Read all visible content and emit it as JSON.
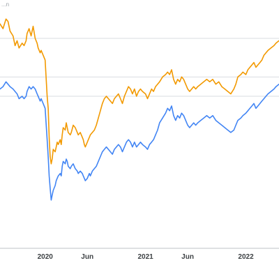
{
  "corner_text": "...n",
  "chart_data": {
    "type": "line",
    "title": "",
    "xlabel": "",
    "ylabel": "",
    "grid": true,
    "legend": "none",
    "x_ticks": [
      {
        "label": "2020",
        "x": 2020.0
      },
      {
        "label": "Jun",
        "x": 2020.42
      },
      {
        "label": "2021",
        "x": 2021.0
      },
      {
        "label": "Jun",
        "x": 2021.42
      },
      {
        "label": "2022",
        "x": 2022.0
      }
    ],
    "x_range": [
      2019.55,
      2022.33
    ],
    "y_range": [
      0,
      100
    ],
    "gridlines_y": [
      87,
      71,
      63
    ],
    "series": [
      {
        "color": "#f29900",
        "points": [
          [
            2019.55,
            93
          ],
          [
            2019.58,
            91
          ],
          [
            2019.61,
            95
          ],
          [
            2019.63,
            94
          ],
          [
            2019.65,
            90
          ],
          [
            2019.68,
            88
          ],
          [
            2019.7,
            84
          ],
          [
            2019.72,
            86
          ],
          [
            2019.74,
            83
          ],
          [
            2019.77,
            85
          ],
          [
            2019.79,
            84
          ],
          [
            2019.81,
            86
          ],
          [
            2019.82,
            89
          ],
          [
            2019.84,
            91
          ],
          [
            2019.86,
            88
          ],
          [
            2019.88,
            92
          ],
          [
            2019.9,
            87
          ],
          [
            2019.92,
            85
          ],
          [
            2019.93,
            83
          ],
          [
            2019.95,
            81
          ],
          [
            2019.96,
            82
          ],
          [
            2019.98,
            80
          ],
          [
            2020.0,
            78
          ],
          [
            2020.02,
            63
          ],
          [
            2020.03,
            58
          ],
          [
            2020.04,
            46
          ],
          [
            2020.05,
            38
          ],
          [
            2020.06,
            35
          ],
          [
            2020.07,
            37
          ],
          [
            2020.08,
            41
          ],
          [
            2020.1,
            40
          ],
          [
            2020.11,
            42
          ],
          [
            2020.12,
            44
          ],
          [
            2020.13,
            43
          ],
          [
            2020.15,
            45
          ],
          [
            2020.16,
            43
          ],
          [
            2020.17,
            47
          ],
          [
            2020.18,
            50
          ],
          [
            2020.2,
            49
          ],
          [
            2020.21,
            52
          ],
          [
            2020.22,
            50
          ],
          [
            2020.23,
            48
          ],
          [
            2020.25,
            47
          ],
          [
            2020.26,
            48
          ],
          [
            2020.28,
            51
          ],
          [
            2020.3,
            50
          ],
          [
            2020.32,
            48
          ],
          [
            2020.33,
            47
          ],
          [
            2020.35,
            48
          ],
          [
            2020.37,
            46
          ],
          [
            2020.38,
            45
          ],
          [
            2020.39,
            43
          ],
          [
            2020.4,
            42
          ],
          [
            2020.42,
            44
          ],
          [
            2020.43,
            45
          ],
          [
            2020.44,
            46
          ],
          [
            2020.45,
            47
          ],
          [
            2020.47,
            48
          ],
          [
            2020.49,
            49
          ],
          [
            2020.51,
            51
          ],
          [
            2020.53,
            54
          ],
          [
            2020.55,
            57
          ],
          [
            2020.57,
            60
          ],
          [
            2020.59,
            62
          ],
          [
            2020.61,
            63
          ],
          [
            2020.63,
            62
          ],
          [
            2020.65,
            61
          ],
          [
            2020.67,
            60
          ],
          [
            2020.69,
            62
          ],
          [
            2020.71,
            63
          ],
          [
            2020.73,
            64
          ],
          [
            2020.75,
            62
          ],
          [
            2020.77,
            60
          ],
          [
            2020.79,
            63
          ],
          [
            2020.81,
            65
          ],
          [
            2020.83,
            67
          ],
          [
            2020.85,
            66
          ],
          [
            2020.87,
            64
          ],
          [
            2020.89,
            66
          ],
          [
            2020.91,
            63
          ],
          [
            2020.93,
            65
          ],
          [
            2020.95,
            66
          ],
          [
            2020.97,
            65
          ],
          [
            2021.0,
            64
          ],
          [
            2021.02,
            62
          ],
          [
            2021.04,
            64
          ],
          [
            2021.06,
            66
          ],
          [
            2021.08,
            65
          ],
          [
            2021.1,
            67
          ],
          [
            2021.12,
            68
          ],
          [
            2021.14,
            69
          ],
          [
            2021.17,
            71
          ],
          [
            2021.2,
            72
          ],
          [
            2021.22,
            73
          ],
          [
            2021.24,
            72
          ],
          [
            2021.26,
            74
          ],
          [
            2021.28,
            70
          ],
          [
            2021.3,
            68
          ],
          [
            2021.32,
            70
          ],
          [
            2021.34,
            69
          ],
          [
            2021.36,
            71
          ],
          [
            2021.38,
            70
          ],
          [
            2021.4,
            68
          ],
          [
            2021.42,
            66
          ],
          [
            2021.44,
            65
          ],
          [
            2021.46,
            66
          ],
          [
            2021.48,
            67
          ],
          [
            2021.5,
            66
          ],
          [
            2021.52,
            67
          ],
          [
            2021.55,
            68
          ],
          [
            2021.58,
            69
          ],
          [
            2021.61,
            70
          ],
          [
            2021.64,
            69
          ],
          [
            2021.67,
            70
          ],
          [
            2021.7,
            68
          ],
          [
            2021.73,
            69
          ],
          [
            2021.76,
            67
          ],
          [
            2021.79,
            66
          ],
          [
            2021.82,
            65
          ],
          [
            2021.85,
            64
          ],
          [
            2021.88,
            66
          ],
          [
            2021.9,
            68
          ],
          [
            2021.92,
            71
          ],
          [
            2021.95,
            72
          ],
          [
            2021.97,
            73
          ],
          [
            2022.0,
            72
          ],
          [
            2022.02,
            74
          ],
          [
            2022.04,
            75
          ],
          [
            2022.06,
            76
          ],
          [
            2022.08,
            77
          ],
          [
            2022.1,
            75
          ],
          [
            2022.12,
            76
          ],
          [
            2022.14,
            77
          ],
          [
            2022.16,
            78
          ],
          [
            2022.18,
            80
          ],
          [
            2022.2,
            81
          ],
          [
            2022.22,
            82
          ],
          [
            2022.25,
            83
          ],
          [
            2022.28,
            84
          ],
          [
            2022.3,
            85
          ],
          [
            2022.33,
            86
          ]
        ]
      },
      {
        "color": "#4285f4",
        "points": [
          [
            2019.55,
            66
          ],
          [
            2019.58,
            67
          ],
          [
            2019.61,
            69
          ],
          [
            2019.63,
            68
          ],
          [
            2019.65,
            67
          ],
          [
            2019.68,
            66
          ],
          [
            2019.7,
            65
          ],
          [
            2019.72,
            64
          ],
          [
            2019.74,
            62
          ],
          [
            2019.77,
            63
          ],
          [
            2019.79,
            62
          ],
          [
            2019.81,
            63
          ],
          [
            2019.82,
            65
          ],
          [
            2019.84,
            67
          ],
          [
            2019.86,
            66
          ],
          [
            2019.88,
            67
          ],
          [
            2019.9,
            66
          ],
          [
            2019.92,
            64
          ],
          [
            2019.93,
            63
          ],
          [
            2019.95,
            61
          ],
          [
            2019.96,
            62
          ],
          [
            2019.98,
            60
          ],
          [
            2020.0,
            58
          ],
          [
            2020.02,
            45
          ],
          [
            2020.03,
            38
          ],
          [
            2020.04,
            30
          ],
          [
            2020.05,
            25
          ],
          [
            2020.06,
            20
          ],
          [
            2020.07,
            22
          ],
          [
            2020.08,
            24
          ],
          [
            2020.1,
            26
          ],
          [
            2020.11,
            28
          ],
          [
            2020.12,
            29
          ],
          [
            2020.13,
            30
          ],
          [
            2020.15,
            31
          ],
          [
            2020.16,
            30
          ],
          [
            2020.17,
            34
          ],
          [
            2020.18,
            36
          ],
          [
            2020.2,
            35
          ],
          [
            2020.21,
            37
          ],
          [
            2020.22,
            36
          ],
          [
            2020.23,
            34
          ],
          [
            2020.25,
            33
          ],
          [
            2020.26,
            34
          ],
          [
            2020.28,
            35
          ],
          [
            2020.3,
            33
          ],
          [
            2020.32,
            32
          ],
          [
            2020.33,
            31
          ],
          [
            2020.35,
            32
          ],
          [
            2020.37,
            31
          ],
          [
            2020.38,
            30
          ],
          [
            2020.39,
            29
          ],
          [
            2020.4,
            28
          ],
          [
            2020.42,
            29
          ],
          [
            2020.43,
            30
          ],
          [
            2020.44,
            31
          ],
          [
            2020.45,
            30
          ],
          [
            2020.47,
            32
          ],
          [
            2020.49,
            33
          ],
          [
            2020.51,
            34
          ],
          [
            2020.53,
            36
          ],
          [
            2020.55,
            38
          ],
          [
            2020.57,
            40
          ],
          [
            2020.59,
            41
          ],
          [
            2020.61,
            42
          ],
          [
            2020.63,
            41
          ],
          [
            2020.65,
            40
          ],
          [
            2020.67,
            39
          ],
          [
            2020.69,
            41
          ],
          [
            2020.71,
            42
          ],
          [
            2020.73,
            43
          ],
          [
            2020.75,
            42
          ],
          [
            2020.77,
            40
          ],
          [
            2020.79,
            42
          ],
          [
            2020.81,
            44
          ],
          [
            2020.83,
            45
          ],
          [
            2020.85,
            44
          ],
          [
            2020.87,
            42
          ],
          [
            2020.89,
            44
          ],
          [
            2020.91,
            42
          ],
          [
            2020.93,
            43
          ],
          [
            2020.95,
            44
          ],
          [
            2020.97,
            43
          ],
          [
            2021.0,
            42
          ],
          [
            2021.02,
            41
          ],
          [
            2021.04,
            43
          ],
          [
            2021.06,
            44
          ],
          [
            2021.08,
            45
          ],
          [
            2021.1,
            47
          ],
          [
            2021.12,
            49
          ],
          [
            2021.14,
            52
          ],
          [
            2021.17,
            54
          ],
          [
            2021.2,
            56
          ],
          [
            2021.22,
            58
          ],
          [
            2021.24,
            57
          ],
          [
            2021.26,
            59
          ],
          [
            2021.28,
            55
          ],
          [
            2021.3,
            53
          ],
          [
            2021.32,
            55
          ],
          [
            2021.34,
            54
          ],
          [
            2021.36,
            56
          ],
          [
            2021.38,
            55
          ],
          [
            2021.4,
            53
          ],
          [
            2021.42,
            51
          ],
          [
            2021.44,
            50
          ],
          [
            2021.46,
            51
          ],
          [
            2021.48,
            52
          ],
          [
            2021.5,
            51
          ],
          [
            2021.52,
            52
          ],
          [
            2021.55,
            53
          ],
          [
            2021.58,
            54
          ],
          [
            2021.61,
            55
          ],
          [
            2021.64,
            54
          ],
          [
            2021.67,
            55
          ],
          [
            2021.7,
            53
          ],
          [
            2021.73,
            52
          ],
          [
            2021.76,
            51
          ],
          [
            2021.79,
            50
          ],
          [
            2021.82,
            49
          ],
          [
            2021.85,
            48
          ],
          [
            2021.88,
            49
          ],
          [
            2021.9,
            51
          ],
          [
            2021.92,
            53
          ],
          [
            2021.95,
            54
          ],
          [
            2021.97,
            55
          ],
          [
            2022.0,
            56
          ],
          [
            2022.02,
            57
          ],
          [
            2022.04,
            58
          ],
          [
            2022.06,
            59
          ],
          [
            2022.08,
            60
          ],
          [
            2022.1,
            58
          ],
          [
            2022.12,
            59
          ],
          [
            2022.14,
            60
          ],
          [
            2022.16,
            61
          ],
          [
            2022.18,
            62
          ],
          [
            2022.2,
            63
          ],
          [
            2022.22,
            64
          ],
          [
            2022.25,
            65
          ],
          [
            2022.28,
            66
          ],
          [
            2022.3,
            67
          ],
          [
            2022.33,
            68
          ]
        ]
      }
    ]
  }
}
